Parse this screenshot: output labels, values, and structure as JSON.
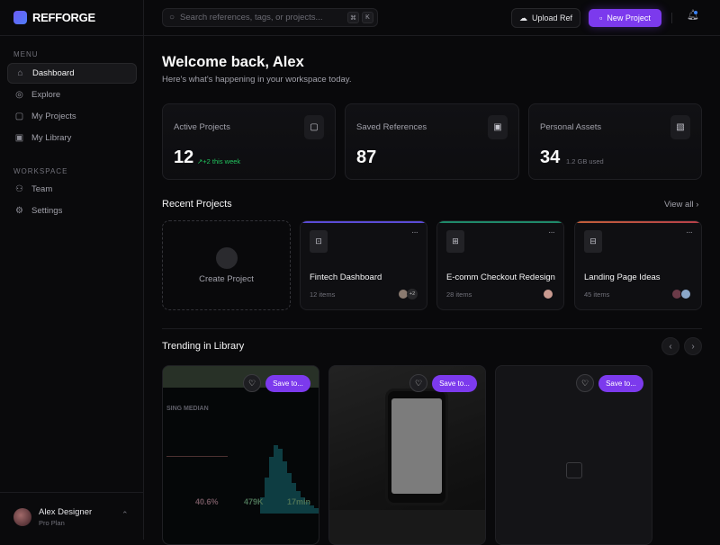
{
  "app": {
    "name": "REFFORGE"
  },
  "sidebar": {
    "menu_label": "MENU",
    "workspace_label": "WORKSPACE",
    "items": [
      {
        "label": "Dashboard",
        "icon": "home-icon"
      },
      {
        "label": "Explore",
        "icon": "compass-icon"
      },
      {
        "label": "My Projects",
        "icon": "folder-icon"
      },
      {
        "label": "My Library",
        "icon": "library-icon"
      }
    ],
    "workspace_items": [
      {
        "label": "Team",
        "icon": "users-icon"
      },
      {
        "label": "Settings",
        "icon": "gear-icon"
      }
    ],
    "user": {
      "name": "Alex Designer",
      "plan": "Pro Plan"
    }
  },
  "header": {
    "search_placeholder": "Search references, tags, or projects...",
    "kbd1": "⌘",
    "kbd2": "K",
    "upload": "Upload Ref",
    "new_project": "New Project"
  },
  "main": {
    "title": "Welcome back, Alex",
    "subtitle": "Here's what's happening in your workspace today.",
    "stats": [
      {
        "label": "Active Projects",
        "value": "12",
        "note": "↗+2 this week",
        "note_color": "#22c55e"
      },
      {
        "label": "Saved References",
        "value": "87"
      },
      {
        "label": "Personal Assets",
        "value": "34",
        "note": "1.2 GB used",
        "note_color": "#71717a"
      }
    ],
    "recent_title": "Recent Projects",
    "view_all": "View all",
    "create_label": "Create Project",
    "projects": [
      {
        "name": "Fintech Dashboard",
        "count": "12 items",
        "accent": "#5b4bd6",
        "extra": "+2"
      },
      {
        "name": "E-comm Checkout Redesign",
        "count": "28 items",
        "accent": "#1f8a6a"
      },
      {
        "name": "Landing Page Ideas",
        "count": "45 items",
        "accent": "#c2543a"
      }
    ],
    "trending_title": "Trending in Library",
    "save_label": "Save to...",
    "trending": [
      {
        "image": "analytics-dashboard-photo",
        "texts": {
          "heading": "SING MEDIAN",
          "metric1": "40.6%",
          "metric2": "479K",
          "metric3": "17min"
        }
      },
      {
        "image": "phone-camera-app-photo"
      },
      {
        "image": "image-placeholder"
      }
    ]
  }
}
